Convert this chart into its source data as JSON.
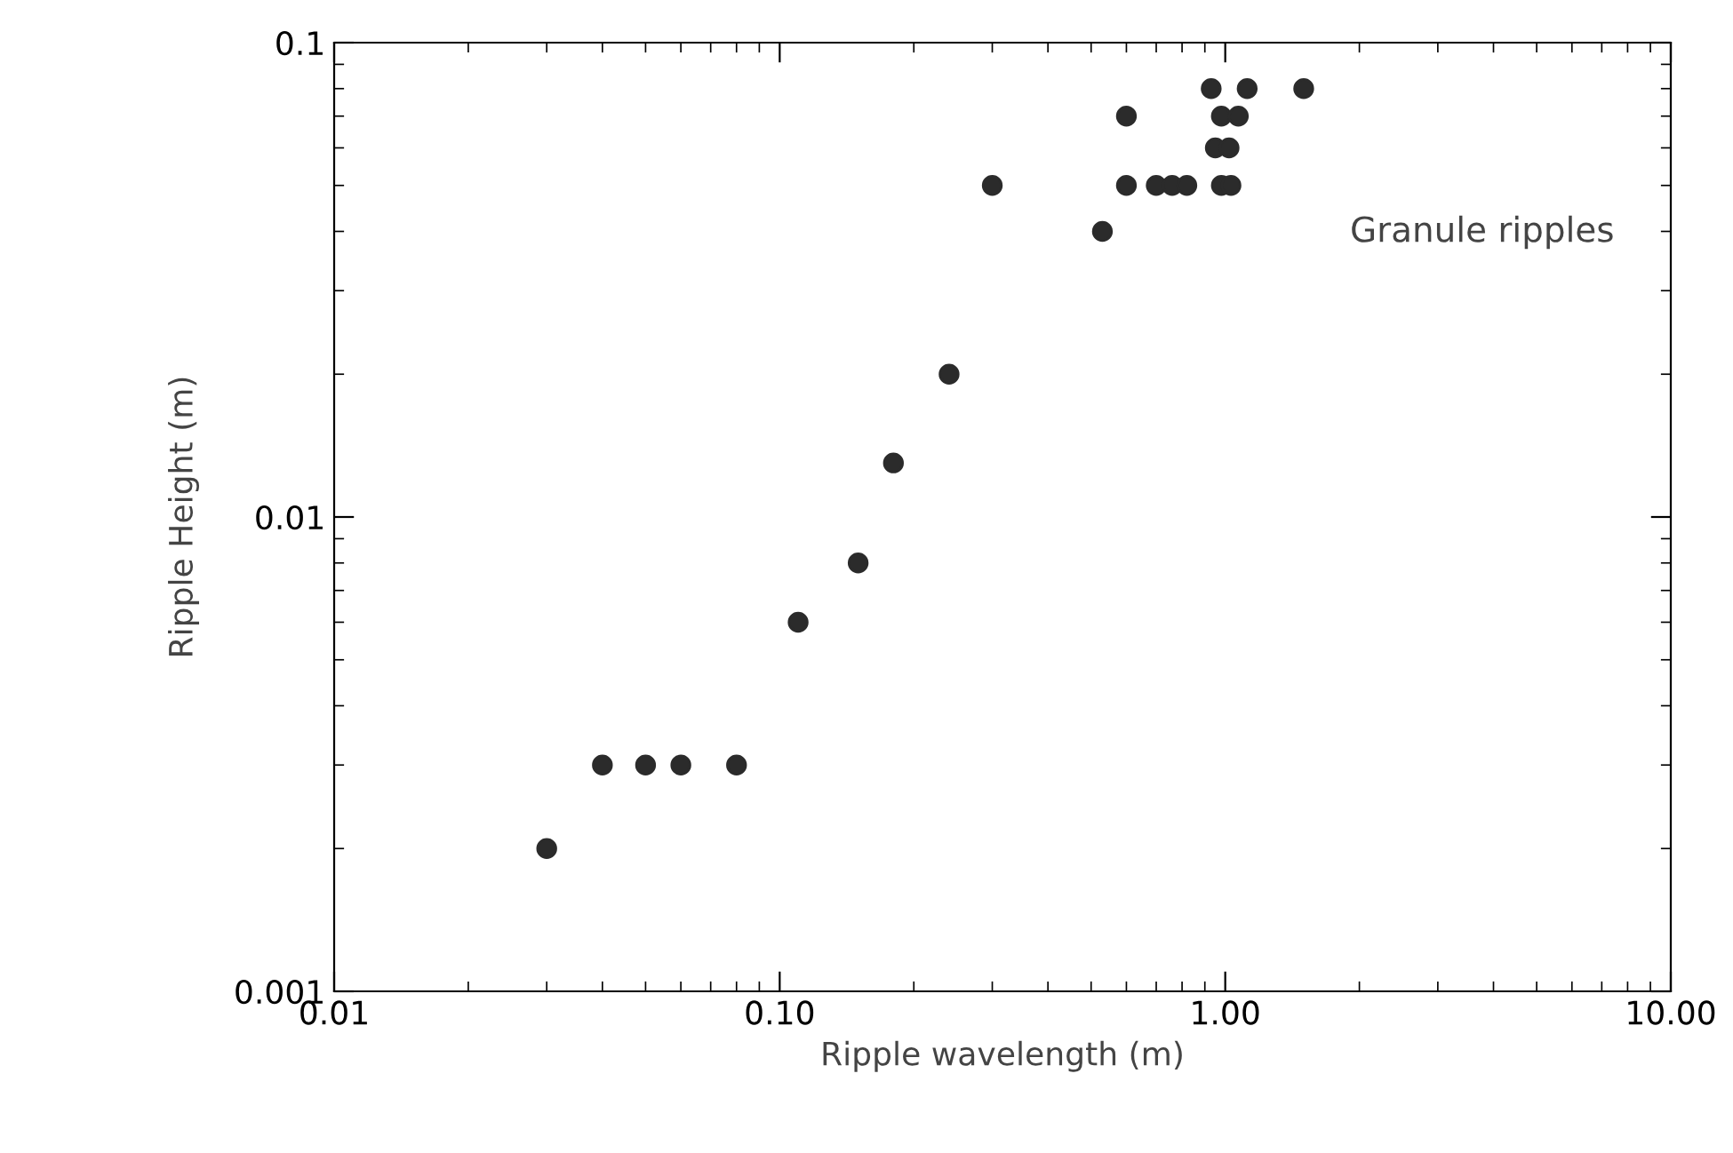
{
  "chart_data": {
    "type": "scatter",
    "xlabel": "Ripple wavelength (m)",
    "ylabel": "Ripple Height (m)",
    "x": [
      0.03,
      0.04,
      0.05,
      0.06,
      0.08,
      0.11,
      0.15,
      0.18,
      0.24,
      0.3,
      0.53,
      0.6,
      0.6,
      0.7,
      0.76,
      0.82,
      0.98,
      1.03,
      0.93,
      1.12,
      1.5,
      0.98,
      1.07,
      0.95,
      1.02
    ],
    "series": [
      {
        "color": "#2b2b2b",
        "values": [
          0.002,
          0.003,
          0.003,
          0.003,
          0.003,
          0.006,
          0.008,
          0.013,
          0.02,
          0.05,
          0.04,
          0.07,
          0.05,
          0.05,
          0.05,
          0.05,
          0.05,
          0.05,
          0.08,
          0.08,
          0.08,
          0.07,
          0.07,
          0.06,
          0.06
        ]
      }
    ],
    "log": "xy",
    "xlim": [
      0.01,
      10
    ],
    "ylim": [
      0.001,
      0.1
    ],
    "xticks": [
      {
        "value": 0.01,
        "label": "0.01"
      },
      {
        "value": 0.1,
        "label": "0.10"
      },
      {
        "value": 1,
        "label": "1.00"
      },
      {
        "value": 10,
        "label": "10.00"
      }
    ],
    "yticks": [
      0.001,
      0.01,
      0.1
    ],
    "annotations": [
      "Granule ripples"
    ],
    "marker": "circle",
    "grid": false,
    "legend": false
  }
}
